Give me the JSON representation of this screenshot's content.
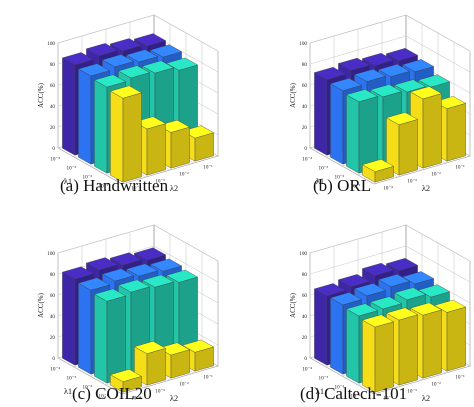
{
  "colors": {
    "lambda1_row_palette": [
      "#3e26a8",
      "#2b73f1",
      "#22c5a8",
      "#f5de17"
    ],
    "grid": "#cfcfcf"
  },
  "panels": [
    {
      "caption": "(a) Handwritten",
      "chart_data": {
        "type": "bar3d",
        "zlabel": "ACC(%)",
        "xlabel": "λ1",
        "ylabel": "λ2",
        "zlim": [
          0,
          100
        ],
        "zticks": [
          "0",
          "20",
          "40",
          "60",
          "80",
          "100"
        ],
        "lambda1_ticks": [
          "10⁻⁴",
          "10⁻³",
          "10⁻²",
          "10⁻¹"
        ],
        "lambda2_ticks": [
          "10⁻⁴",
          "10⁻³",
          "10⁻²",
          "10⁻¹"
        ],
        "values": [
          [
            86,
            88,
            86,
            84
          ],
          [
            84,
            86,
            84,
            82
          ],
          [
            82,
            84,
            82,
            78
          ],
          [
            80,
            44,
            34,
            22
          ]
        ]
      }
    },
    {
      "caption": "(b) ORL",
      "chart_data": {
        "type": "bar3d",
        "zlabel": "ACC(%)",
        "xlabel": "λ1",
        "ylabel": "λ2",
        "zlim": [
          0,
          100
        ],
        "zticks": [
          "0",
          "20",
          "40",
          "60",
          "80",
          "100"
        ],
        "lambda1_ticks": [
          "10⁻⁴",
          "10⁻³",
          "10⁻²",
          "10⁻¹"
        ],
        "lambda2_ticks": [
          "10⁻⁴",
          "10⁻³",
          "10⁻²",
          "10⁻¹"
        ],
        "values": [
          [
            72,
            74,
            72,
            70
          ],
          [
            70,
            72,
            70,
            68
          ],
          [
            68,
            66,
            64,
            62
          ],
          [
            10,
            48,
            66,
            50
          ]
        ]
      }
    },
    {
      "caption": "(c) COIL20",
      "chart_data": {
        "type": "bar3d",
        "zlabel": "ACC(%)",
        "xlabel": "λ1",
        "ylabel": "λ2",
        "zlim": [
          0,
          100
        ],
        "zticks": [
          "0",
          "20",
          "40",
          "60",
          "80",
          "100"
        ],
        "lambda1_ticks": [
          "10⁻⁴",
          "10⁻³",
          "10⁻²",
          "10⁻¹"
        ],
        "lambda2_ticks": [
          "10⁻⁴",
          "10⁻³",
          "10⁻²",
          "10⁻¹"
        ],
        "values": [
          [
            82,
            84,
            82,
            80
          ],
          [
            80,
            82,
            80,
            78
          ],
          [
            78,
            80,
            78,
            76
          ],
          [
            10,
            30,
            22,
            18
          ]
        ]
      }
    },
    {
      "caption": "(d) Caltech-101",
      "chart_data": {
        "type": "bar3d",
        "zlabel": "ACC(%)",
        "xlabel": "λ1",
        "ylabel": "λ2",
        "zlim": [
          0,
          100
        ],
        "zticks": [
          "0",
          "20",
          "40",
          "60",
          "80",
          "100"
        ],
        "lambda1_ticks": [
          "10⁻⁴",
          "10⁻³",
          "10⁻²",
          "10⁻¹"
        ],
        "lambda2_ticks": [
          "10⁻⁴",
          "10⁻³",
          "10⁻²",
          "10⁻¹"
        ],
        "values": [
          [
            66,
            68,
            72,
            70
          ],
          [
            66,
            68,
            70,
            66
          ],
          [
            64,
            64,
            66,
            62
          ],
          [
            62,
            62,
            60,
            56
          ]
        ]
      }
    }
  ]
}
